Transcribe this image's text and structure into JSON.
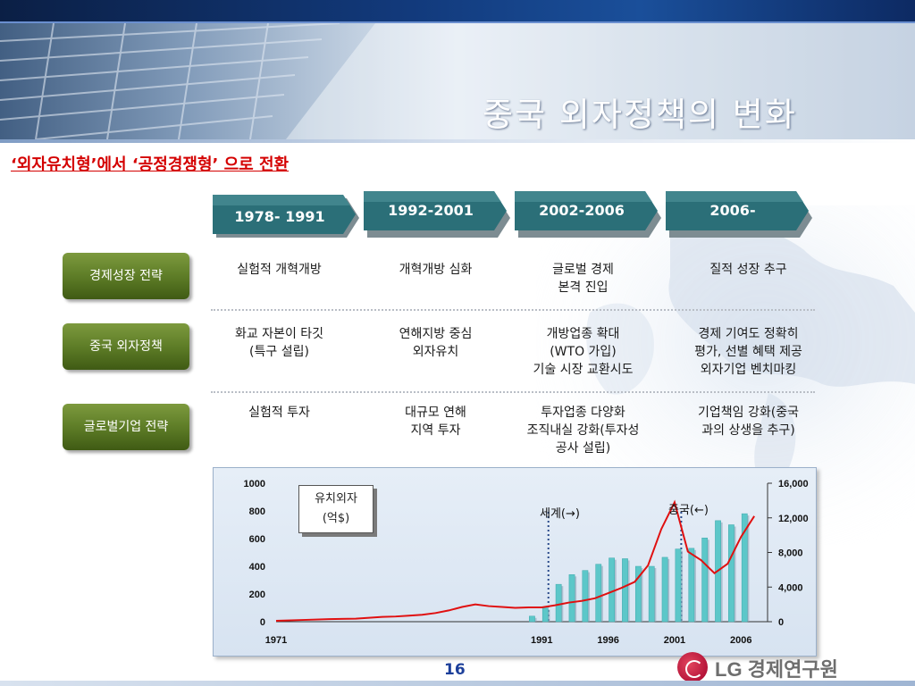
{
  "slide": {
    "title": "중국 외자정책의 변화",
    "subtitle": "‘외자유치형’에서 ‘공정경쟁형’ 으로 전환",
    "page_number": "16",
    "logo_text": "LG 경제연구원"
  },
  "periods": [
    "1978- 1991",
    "1992-2001",
    "2002-2006",
    "2006-"
  ],
  "categories": [
    "경제성장 전략",
    "중국 외자정책",
    "글로벌기업 전략"
  ],
  "grid": [
    [
      "실험적 개혁개방",
      "개혁개방 심화",
      "글로벌 경제\n본격 진입",
      "질적 성장 추구"
    ],
    [
      "화교 자본이 타깃\n(특구 설립)",
      "연해지방 중심\n외자유치",
      "개방업종 확대\n(WTO 가입)\n기술 시장 교환시도",
      "경제 기여도 정확히\n평가, 선별 혜택 제공\n외자기업 벤치마킹"
    ],
    [
      "실험적 투자",
      "대규모 연해\n지역 투자",
      "투자업종 다양화\n조직내실 강화(투자성\n공사 설립)",
      "기업책임 강화(중국\n과의 상생을 추구)"
    ]
  ],
  "chart_data": {
    "type": "bar",
    "legend_box": "유치외자\n(억$)",
    "annotations": {
      "world": "세계(→)",
      "china": "중국(←)"
    },
    "x_tick_labels": [
      "1971",
      "1991",
      "1996",
      "2001",
      "2006"
    ],
    "left_axis": {
      "ticks": [
        "0",
        "200",
        "400",
        "600",
        "800",
        "1000"
      ],
      "ylim": [
        0,
        1000
      ]
    },
    "right_axis": {
      "ticks": [
        "0",
        "4,000",
        "8,000",
        "12,000",
        "16,000"
      ],
      "ylim": [
        0,
        16000
      ]
    },
    "series": [
      {
        "axis": "left",
        "type": "bar",
        "x": [
          1990,
          1991,
          1992,
          1993,
          1994,
          1995,
          1996,
          1997,
          1998,
          1999,
          2000,
          2001,
          2002,
          2003,
          2004,
          2005,
          2006
        ],
        "values": [
          40,
          100,
          270,
          340,
          370,
          415,
          460,
          455,
          400,
          400,
          465,
          525,
          530,
          605,
          730,
          700,
          780
        ]
      },
      {
        "axis": "right",
        "type": "line",
        "x": [
          1971,
          1973,
          1975,
          1977,
          1979,
          1980,
          1981,
          1982,
          1983,
          1984,
          1985,
          1986,
          1987,
          1988,
          1989,
          1990,
          1991,
          1992,
          1993,
          1994,
          1995,
          1996,
          1997,
          1998,
          1999,
          2000,
          2001,
          2002,
          2003,
          2004,
          2005,
          2006,
          2007
        ],
        "values": [
          100,
          200,
          300,
          350,
          550,
          600,
          700,
          800,
          1000,
          1300,
          1700,
          2000,
          1800,
          1700,
          1600,
          1650,
          1650,
          1900,
          2200,
          2400,
          2700,
          3300,
          3900,
          4600,
          6500,
          10700,
          13800,
          8100,
          7100,
          5600,
          6700,
          9800,
          12200
        ]
      }
    ],
    "xlim": [
      1971,
      2008
    ],
    "reference_lines_x": [
      1991.5,
      2001.5
    ],
    "bar_color": "#5cc7c9",
    "line_color": "#e01010"
  }
}
